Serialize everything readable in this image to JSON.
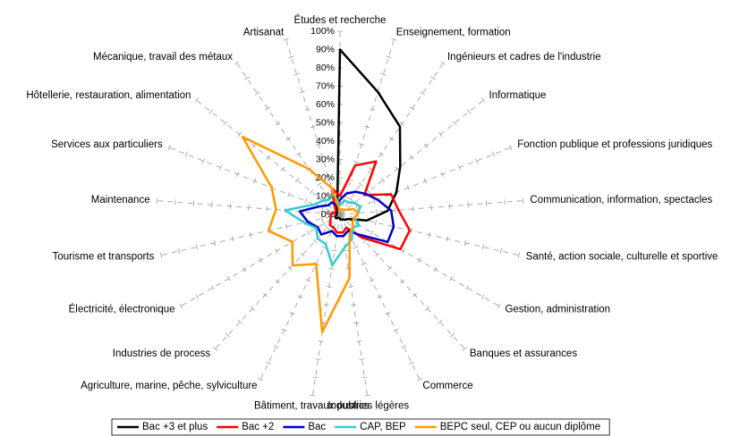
{
  "chart_data": {
    "type": "radar",
    "categories": [
      "Études et recherche",
      "Enseignement, formation",
      "Ingénieurs et cadres de l'industrie",
      "Informatique",
      "Fonction publique et professions juridiques",
      "Communication, information, spectacles",
      "Santé, action sociale, culturelle et sportive",
      "Gestion, administration",
      "Banques et assurances",
      "Commerce",
      "Industries légères",
      "Bâtiment, travaux publics",
      "Agriculture, marine, pêche, sylviculture",
      "Industries de process",
      "Électricité, électronique",
      "Tourisme et transports",
      "Maintenance",
      "Services aux particuliers",
      "Hôtellerie, restauration, alimentation",
      "Mécanique, travail des métaux",
      "Artisanat"
    ],
    "series": [
      {
        "name": "Bac +3 et plus",
        "color": "#000000",
        "values": [
          90,
          70,
          58,
          42,
          33,
          26,
          15,
          5,
          4,
          3,
          3,
          2,
          2,
          3,
          3,
          2,
          2,
          2,
          2,
          3,
          5
        ]
      },
      {
        "name": "Bac +2",
        "color": "#ff0000",
        "values": [
          10,
          28,
          35,
          17,
          30,
          32,
          39,
          38,
          17,
          8,
          10,
          10,
          8,
          8,
          6,
          5,
          5,
          3,
          3,
          5,
          15
        ]
      },
      {
        "name": "Bac",
        "color": "#0000cc",
        "values": [
          8,
          12,
          15,
          18,
          22,
          28,
          30,
          30,
          15,
          10,
          12,
          12,
          10,
          15,
          14,
          18,
          22,
          12,
          8,
          8,
          5
        ]
      },
      {
        "name": "CAP, BEP",
        "color": "#33cccc",
        "values": [
          5,
          8,
          8,
          10,
          12,
          10,
          8,
          12,
          10,
          15,
          18,
          28,
          18,
          18,
          15,
          20,
          30,
          15,
          12,
          10,
          12
        ]
      },
      {
        "name": "BEPC seul, CEP ou aucun diplôme",
        "color": "#ff9900",
        "values": [
          2,
          3,
          3,
          4,
          8,
          10,
          8,
          8,
          10,
          12,
          35,
          65,
          30,
          38,
          30,
          40,
          35,
          40,
          68,
          30,
          15
        ]
      }
    ],
    "ylim": [
      0,
      100
    ],
    "yticks": [
      {
        "value": 0,
        "label": "0%"
      },
      {
        "value": 10,
        "label": "10%"
      },
      {
        "value": 20,
        "label": "20%"
      },
      {
        "value": 30,
        "label": "30%"
      },
      {
        "value": 40,
        "label": "40%"
      },
      {
        "value": 50,
        "label": "50%"
      },
      {
        "value": 60,
        "label": "60%"
      },
      {
        "value": 70,
        "label": "70%"
      },
      {
        "value": 80,
        "label": "80%"
      },
      {
        "value": 90,
        "label": "90%"
      },
      {
        "value": 100,
        "label": "100%"
      }
    ],
    "legend": "bottom"
  }
}
